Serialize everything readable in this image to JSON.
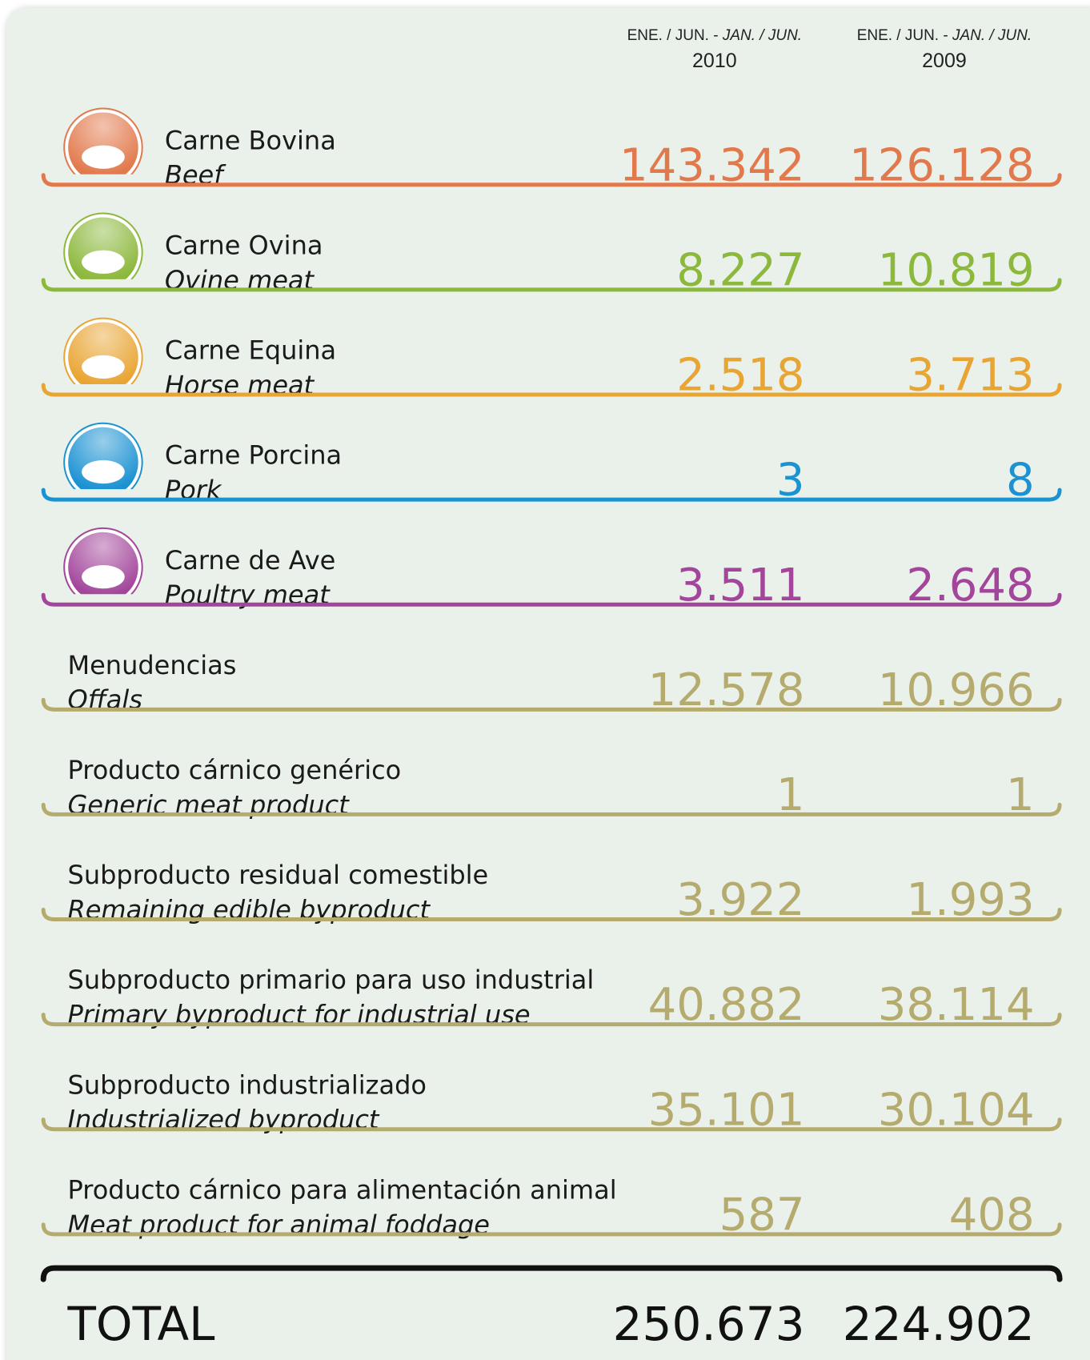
{
  "header": {
    "columns": [
      {
        "period_es": "ENE. / JUN. -",
        "period_en": "JAN. / JUN.",
        "year": "2010"
      },
      {
        "period_es": "ENE. / JUN. -",
        "period_en": "JAN. / JUN.",
        "year": "2009"
      }
    ]
  },
  "table": {
    "rows": [
      {
        "label_es": "Carne Bovina",
        "label_en": "Beef",
        "values": [
          "143.342",
          "126.128"
        ],
        "color": "#e2794c",
        "icon": true
      },
      {
        "label_es": "Carne Ovina",
        "label_en": "Ovine meat",
        "values": [
          "8.227",
          "10.819"
        ],
        "color": "#8cb83c",
        "icon": true
      },
      {
        "label_es": "Carne Equina",
        "label_en": "Horse meat",
        "values": [
          "2.518",
          "3.713"
        ],
        "color": "#e9a534",
        "icon": true
      },
      {
        "label_es": "Carne Porcina",
        "label_en": "Pork",
        "values": [
          "3",
          "8"
        ],
        "color": "#1b92d2",
        "icon": true
      },
      {
        "label_es": "Carne de Ave",
        "label_en": "Poultry meat",
        "values": [
          "3.511",
          "2.648"
        ],
        "color": "#a3469b",
        "icon": true
      },
      {
        "label_es": "Menudencias",
        "label_en": "Offals",
        "values": [
          "12.578",
          "10.966"
        ],
        "color": "#b6ab6e",
        "icon": false
      },
      {
        "label_es": "Producto cárnico genérico",
        "label_en": "Generic meat product",
        "values": [
          "1",
          "1"
        ],
        "color": "#b6ab6e",
        "icon": false
      },
      {
        "label_es": "Subproducto residual comestible",
        "label_en": "Remaining edible byproduct",
        "values": [
          "3.922",
          "1.993"
        ],
        "color": "#b6ab6e",
        "icon": false
      },
      {
        "label_es": "Subproducto primario para uso industrial",
        "label_en": "Primary byproduct for industrial use",
        "values": [
          "40.882",
          "38.114"
        ],
        "color": "#b6ab6e",
        "icon": false
      },
      {
        "label_es": "Subproducto industrializado",
        "label_en": "Industrialized byproduct",
        "values": [
          "35.101",
          "30.104"
        ],
        "color": "#b6ab6e",
        "icon": false
      },
      {
        "label_es": "Producto cárnico para alimentación animal",
        "label_en": "Meat product for animal foddage",
        "values": [
          "587",
          "408"
        ],
        "color": "#b6ab6e",
        "icon": false
      }
    ],
    "total": {
      "label": "TOTAL",
      "values": [
        "250.673",
        "224.902"
      ]
    }
  }
}
